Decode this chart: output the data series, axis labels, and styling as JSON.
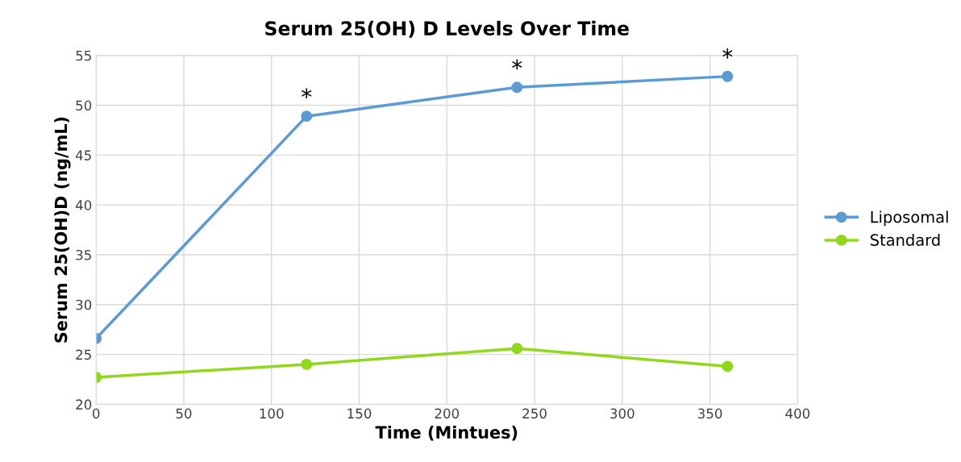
{
  "chart_data": {
    "type": "line",
    "title": "Serum 25(OH) D Levels Over Time",
    "xlabel": "Time (Mintues)",
    "ylabel": "Serum 25(OH)D (ng/mL)",
    "x": [
      0,
      120,
      240,
      360
    ],
    "series": [
      {
        "name": "Liposomal",
        "color": "#5b9bd5",
        "values": [
          26.6,
          48.9,
          51.8,
          52.9
        ]
      },
      {
        "name": "Standard",
        "color": "#92d81a",
        "values": [
          22.7,
          24.0,
          25.6,
          23.8
        ]
      }
    ],
    "xlim": [
      0,
      400
    ],
    "xticks": [
      0,
      50,
      100,
      150,
      200,
      250,
      300,
      350,
      400
    ],
    "ylim": [
      20,
      55
    ],
    "yticks": [
      20,
      25,
      30,
      35,
      40,
      45,
      50,
      55
    ],
    "annotations": [
      {
        "text": "*",
        "x": 120,
        "y": 48.9
      },
      {
        "text": "*",
        "x": 240,
        "y": 51.8
      },
      {
        "text": "*",
        "x": 360,
        "y": 52.9
      }
    ],
    "grid": true,
    "legend": "right",
    "marker": "circle",
    "line_style": "solid"
  }
}
